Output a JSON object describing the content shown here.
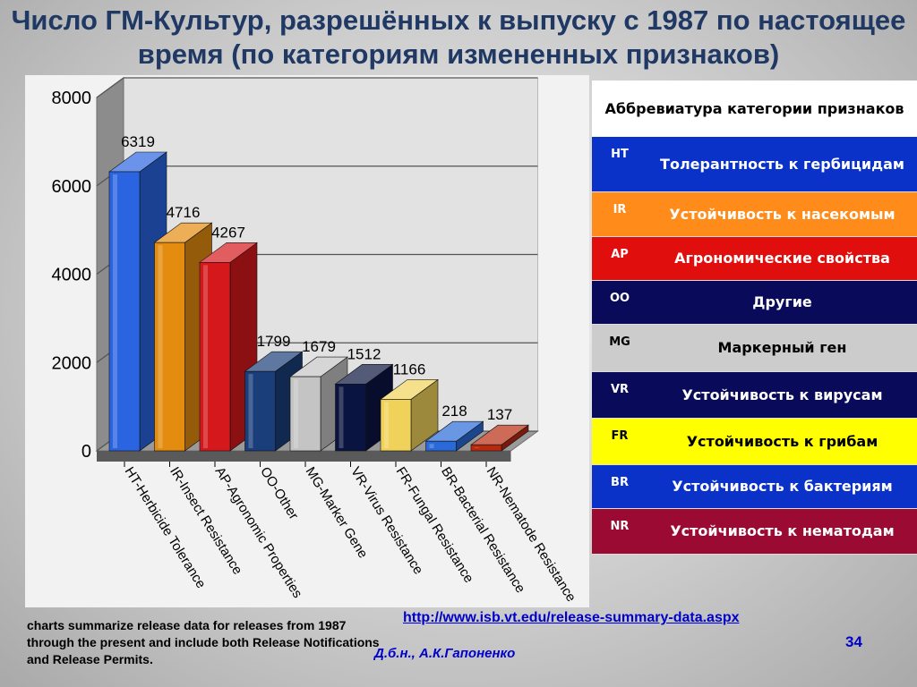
{
  "title": "Число ГМ-Культур, разрешённых к выпуску с 1987 по настоящее время  (по категориям измененных признаков)",
  "chart_data": {
    "type": "bar",
    "title": "",
    "xlabel": "",
    "ylabel": "",
    "ylim": [
      0,
      8000
    ],
    "yticks": [
      "0",
      "2000",
      "4000",
      "6000",
      "8000"
    ],
    "grid": true,
    "categories": [
      "HT-Herbicide Tolerance",
      "IR-Insect Resistance",
      "AP-Agronomic Properties",
      "OO-Other",
      "MG-Marker Gene",
      "VR-Virus Resistance",
      "FR-Fungal Resistance",
      "BR-Bacterial Resistance",
      "NR-Nematode Resistance"
    ],
    "values": [
      6319,
      4716,
      4267,
      1799,
      1679,
      1512,
      1166,
      218,
      137
    ],
    "value_labels": [
      "6319",
      "4716",
      "4267",
      "1799",
      "1679",
      "1512",
      "1166",
      "218",
      "137"
    ],
    "colors": [
      "#2a64e0",
      "#e48c10",
      "#d4181c",
      "#1a3e7a",
      "#c4c4c4",
      "#0a1440",
      "#f0d25a",
      "#2a6ad8",
      "#b82a10"
    ]
  },
  "legend": {
    "header": "Аббревиатура категории признаков",
    "rows": [
      {
        "abbr": "HT",
        "label": "Толерантность к гербицидам",
        "bg": "#0a32c8",
        "fg": "#ffffff"
      },
      {
        "abbr": "IR",
        "label": "Устойчивость к насекомым",
        "bg": "#ff8c1a",
        "fg": "#ffffff"
      },
      {
        "abbr": "AP",
        "label": "Агрономические свойства",
        "bg": "#e10e0e",
        "fg": "#ffffff"
      },
      {
        "abbr": "OO",
        "label": "Другие",
        "bg": "#0a0a5a",
        "fg": "#ffffff"
      },
      {
        "abbr": "MG",
        "label": "Маркерный ген",
        "bg": "#cccccc",
        "fg": "#000000"
      },
      {
        "abbr": "VR",
        "label": "Устойчивость к вирусам",
        "bg": "#0a0a5a",
        "fg": "#ffffff"
      },
      {
        "abbr": "FR",
        "label": "Устойчивость к грибам",
        "bg": "#ffff00",
        "fg": "#000000"
      },
      {
        "abbr": "BR",
        "label": "Устойчивость к бактериям",
        "bg": "#0a32c8",
        "fg": "#ffffff"
      },
      {
        "abbr": "NR",
        "label": "Устойчивость к нематодам",
        "bg": "#9a0a32",
        "fg": "#ffffff"
      }
    ]
  },
  "footer": {
    "note": "charts summarize release data for releases from 1987 through the present and include both Release Notifications and Release Permits.",
    "link": "http://www.isb.vt.edu/release-summary-data.aspx",
    "author": "Д.б.н., А.К.Гапоненко",
    "page_number": "34"
  }
}
